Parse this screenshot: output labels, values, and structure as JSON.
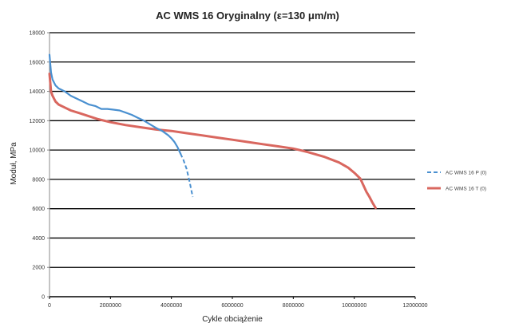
{
  "chart_data": {
    "type": "line",
    "title": "AC WMS 16 Oryginalny (ε=130 μm/m)",
    "xlabel": "Cykle obciążenie",
    "ylabel": "Moduł, MPa",
    "xlim": [
      0,
      12000000
    ],
    "ylim": [
      0,
      18000
    ],
    "xticks": [
      0,
      2000000,
      4000000,
      6000000,
      8000000,
      10000000,
      12000000
    ],
    "xtick_labels": [
      "0",
      "2000000",
      "4000000",
      "6000000",
      "8000000",
      "10000000",
      "12000000"
    ],
    "yticks": [
      0,
      2000,
      4000,
      6000,
      8000,
      10000,
      12000,
      14000,
      16000,
      18000
    ],
    "ytick_labels": [
      "0",
      "2000",
      "4000",
      "6000",
      "8000",
      "10000",
      "12000",
      "14000",
      "16000",
      "18000"
    ],
    "grid": "horizontal",
    "legend_position": "right",
    "series": [
      {
        "name": "AC WMS 16 P (0)",
        "color": "#4a90d0",
        "style": "solid-then-dashed",
        "x": [
          0,
          50000,
          100000,
          200000,
          300000,
          500000,
          700000,
          900000,
          1100000,
          1300000,
          1500000,
          1700000,
          1900000,
          2100000,
          2300000,
          2500000,
          2700000,
          2900000,
          3100000,
          3300000,
          3500000,
          3700000,
          3900000,
          4000000,
          4100000,
          4200000,
          4300000,
          4400000,
          4500000,
          4550000,
          4600000,
          4650000,
          4700000
        ],
        "y": [
          16500,
          15300,
          14800,
          14400,
          14200,
          14000,
          13700,
          13500,
          13300,
          13100,
          13000,
          12800,
          12800,
          12750,
          12700,
          12550,
          12400,
          12200,
          12000,
          11750,
          11500,
          11300,
          11000,
          10800,
          10550,
          10200,
          9750,
          9300,
          8700,
          8250,
          7800,
          7300,
          6800
        ],
        "dashed_from_x": 4300000
      },
      {
        "name": "AC WMS 16 T (0)",
        "color": "#d9675f",
        "style": "solid",
        "x": [
          0,
          50000,
          100000,
          200000,
          300000,
          500000,
          700000,
          1000000,
          1300000,
          1600000,
          2000000,
          2500000,
          3000000,
          3500000,
          4000000,
          4500000,
          5000000,
          5500000,
          6000000,
          6500000,
          7000000,
          7500000,
          8000000,
          8200000,
          8500000,
          9000000,
          9500000,
          9800000,
          10000000,
          10200000,
          10300000,
          10400000,
          10500000,
          10600000,
          10700000
        ],
        "y": [
          15200,
          14000,
          13700,
          13300,
          13100,
          12900,
          12700,
          12500,
          12300,
          12100,
          11900,
          11700,
          11550,
          11400,
          11300,
          11150,
          11000,
          10850,
          10700,
          10550,
          10400,
          10250,
          10100,
          10000,
          9850,
          9550,
          9150,
          8800,
          8450,
          8050,
          7600,
          7150,
          6800,
          6400,
          6050
        ]
      }
    ]
  }
}
